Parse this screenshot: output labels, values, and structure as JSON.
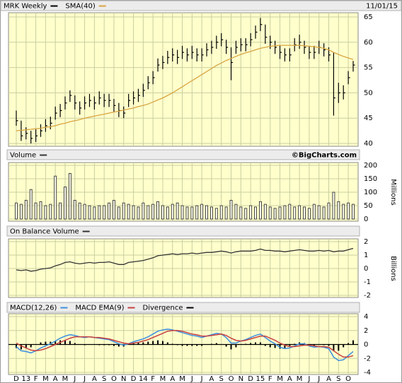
{
  "chart_data": [
    {
      "type": "ohlc",
      "date": "11/01/15",
      "series": [
        {
          "name": "MRK Weekly",
          "color": "#000000",
          "high": [
            46.5,
            44.5,
            43.2,
            42.5,
            42.8,
            43.8,
            44.8,
            45.3,
            47.3,
            47.8,
            49.3,
            50.5,
            49.5,
            48.3,
            49.3,
            49.8,
            49.3,
            50.3,
            49.8,
            49.8,
            48.8,
            48,
            47.3,
            49.8,
            50.3,
            50.8,
            51.8,
            53.3,
            54.3,
            56.8,
            57.3,
            58.3,
            58.8,
            58.5,
            59.3,
            58.8,
            59.3,
            58.8,
            58.8,
            59.8,
            60.3,
            61.3,
            61.8,
            60.5,
            59,
            60.3,
            60.8,
            60.8,
            61.8,
            63.3,
            64.8,
            63.5,
            61.3,
            60.3,
            59.3,
            58.8,
            58.8,
            60.8,
            61.5,
            60.3,
            59.3,
            59.3,
            60.3,
            59.8,
            59,
            58,
            52,
            51.5,
            54.3,
            56.3
          ],
          "low": [
            43.5,
            40.5,
            40.8,
            40,
            40.3,
            41.3,
            42.3,
            42.8,
            44.7,
            45.2,
            46.7,
            48.2,
            46.7,
            45.7,
            46.7,
            47.2,
            46.7,
            47.7,
            47.2,
            47.2,
            46.2,
            45.2,
            45,
            47.2,
            47.7,
            48.2,
            49.2,
            50.7,
            51.7,
            54.2,
            54.7,
            55.7,
            56.2,
            55.7,
            56.7,
            56.2,
            56.7,
            56.2,
            56.2,
            57.2,
            57.7,
            58.7,
            59.2,
            57.7,
            52.5,
            57.7,
            58.2,
            58.2,
            59.2,
            60.7,
            62.2,
            59.7,
            58.7,
            57.7,
            56.7,
            56.2,
            56.2,
            58.2,
            58.7,
            57.7,
            56.7,
            56.7,
            57.7,
            57.2,
            56.2,
            45.5,
            48,
            48.7,
            51.7,
            54.2
          ],
          "close": [
            44.5,
            41.5,
            42,
            41,
            41.5,
            42.5,
            43.5,
            44,
            46,
            46.5,
            48,
            49.5,
            48,
            47,
            48,
            48.5,
            48,
            49,
            48.5,
            48.5,
            47.5,
            46.5,
            46,
            48.5,
            49,
            49.5,
            50.5,
            52,
            53,
            55.5,
            56,
            57,
            57.5,
            57,
            58,
            57.5,
            58,
            57.5,
            57.5,
            58.5,
            59,
            60,
            60.5,
            59,
            56,
            59,
            59.5,
            59.5,
            60.5,
            62,
            63.5,
            61,
            60,
            59,
            58,
            57.5,
            57.5,
            59.5,
            60,
            59,
            58,
            58,
            59,
            58.5,
            57.5,
            49,
            50,
            50,
            53,
            55.5
          ]
        },
        {
          "name": "SMA(40)",
          "color": "#d9a441",
          "values": [
            42.5,
            42.6,
            42.7,
            42.8,
            42.9,
            43,
            43.2,
            43.3,
            43.5,
            43.8,
            44,
            44.3,
            44.5,
            44.7,
            45,
            45.2,
            45.4,
            45.6,
            45.8,
            46,
            46.2,
            46.4,
            46.6,
            46.8,
            47,
            47.3,
            47.5,
            47.8,
            48.2,
            48.6,
            49,
            49.5,
            50,
            50.6,
            51.2,
            51.8,
            52.4,
            53,
            53.6,
            54.2,
            54.8,
            55.4,
            55.9,
            56.4,
            56.8,
            57.2,
            57.6,
            57.9,
            58.2,
            58.5,
            58.8,
            59,
            59.2,
            59.3,
            59.4,
            59.4,
            59.4,
            59.4,
            59.4,
            59.3,
            59.2,
            59.1,
            59,
            58.8,
            58.5,
            58,
            57.6,
            57.2,
            56.9,
            56.6
          ]
        }
      ],
      "ylim": [
        40,
        65
      ],
      "yticks": [
        40,
        45,
        50,
        55,
        60,
        65
      ],
      "grid": true
    },
    {
      "type": "bar",
      "title": "Volume",
      "credit": "©BigCharts.com",
      "ylabel": "Millions",
      "color": "#333333",
      "values": [
        60,
        55,
        70,
        110,
        60,
        65,
        50,
        55,
        160,
        60,
        120,
        170,
        70,
        60,
        55,
        50,
        45,
        50,
        50,
        60,
        70,
        45,
        60,
        55,
        50,
        45,
        60,
        50,
        55,
        65,
        50,
        45,
        55,
        60,
        50,
        45,
        45,
        50,
        55,
        50,
        45,
        40,
        50,
        45,
        70,
        55,
        45,
        40,
        50,
        45,
        65,
        55,
        45,
        40,
        45,
        50,
        55,
        45,
        50,
        45,
        40,
        55,
        50,
        45,
        60,
        100,
        65,
        55,
        60,
        55
      ],
      "ylim": [
        0,
        200
      ],
      "yticks": [
        0,
        50,
        100,
        150,
        200
      ],
      "grid": true
    },
    {
      "type": "line",
      "title": "On Balance Volume",
      "ylabel": "Billions",
      "color": "#333333",
      "values": [
        -0.1,
        -0.15,
        -0.1,
        -0.2,
        -0.15,
        -0.05,
        0,
        0.05,
        0.2,
        0.3,
        0.45,
        0.5,
        0.4,
        0.35,
        0.4,
        0.45,
        0.4,
        0.45,
        0.45,
        0.5,
        0.4,
        0.3,
        0.3,
        0.45,
        0.5,
        0.55,
        0.6,
        0.7,
        0.8,
        0.95,
        1,
        1.05,
        1.1,
        1.05,
        1.1,
        1.1,
        1.15,
        1.1,
        1.15,
        1.2,
        1.2,
        1.25,
        1.3,
        1.25,
        1.15,
        1.25,
        1.3,
        1.3,
        1.3,
        1.35,
        1.45,
        1.35,
        1.35,
        1.3,
        1.3,
        1.25,
        1.3,
        1.35,
        1.4,
        1.35,
        1.3,
        1.3,
        1.35,
        1.3,
        1.35,
        1.25,
        1.3,
        1.3,
        1.4,
        1.5
      ],
      "ylim": [
        -2,
        2
      ],
      "yticks": [
        -2,
        -1,
        0,
        1,
        2
      ],
      "grid": true
    },
    {
      "type": "macd",
      "series": [
        {
          "name": "MACD(12,26)",
          "color": "#3c8fe0",
          "style": "line",
          "values": [
            -0.3,
            -0.9,
            -1,
            -1.2,
            -0.9,
            -0.5,
            -0.2,
            0.1,
            0.5,
            0.9,
            1.2,
            1.4,
            1.3,
            1.1,
            1,
            1.1,
            1,
            0.9,
            0.8,
            0.7,
            0.4,
            0.1,
            -0.1,
            0.1,
            0.4,
            0.6,
            0.8,
            1.1,
            1.5,
            1.9,
            2.1,
            2.2,
            2.1,
            1.9,
            1.7,
            1.5,
            1.3,
            1.2,
            1,
            1.2,
            1.4,
            1.6,
            1.5,
            1,
            0.2,
            0.2,
            0.5,
            0.7,
            1,
            1.3,
            1.5,
            1,
            0.5,
            0.1,
            -0.4,
            -0.6,
            -0.5,
            -0.2,
            0.1,
            0.1,
            -0.2,
            -0.4,
            -0.3,
            -0.4,
            -0.6,
            -1.8,
            -2.3,
            -2.2,
            -1.6,
            -1
          ]
        },
        {
          "name": "MACD EMA(9)",
          "color": "#c84040",
          "style": "line",
          "values": [
            0.2,
            -0.2,
            -0.5,
            -0.8,
            -0.9,
            -0.8,
            -0.6,
            -0.3,
            0,
            0.3,
            0.6,
            0.9,
            1.1,
            1.1,
            1.1,
            1.1,
            1,
            1,
            0.9,
            0.8,
            0.6,
            0.4,
            0.2,
            0.1,
            0.2,
            0.3,
            0.5,
            0.7,
            1,
            1.3,
            1.6,
            1.9,
            2,
            2,
            1.9,
            1.7,
            1.5,
            1.4,
            1.2,
            1.2,
            1.3,
            1.4,
            1.5,
            1.3,
            0.9,
            0.6,
            0.5,
            0.6,
            0.8,
            1,
            1.2,
            1.2,
            0.9,
            0.6,
            0.2,
            -0.1,
            -0.3,
            -0.3,
            -0.2,
            -0.1,
            -0.1,
            -0.2,
            -0.3,
            -0.3,
            -0.4,
            -0.9,
            -1.4,
            -1.8,
            -1.8,
            -1.6
          ]
        },
        {
          "name": "Divergence",
          "color": "#000000",
          "style": "bar",
          "values": [
            -0.5,
            -0.7,
            -0.5,
            -0.4,
            0,
            0.3,
            0.4,
            0.4,
            0.5,
            0.6,
            0.6,
            0.5,
            0.2,
            0,
            -0.1,
            0,
            0,
            -0.1,
            -0.1,
            -0.1,
            -0.2,
            -0.3,
            -0.3,
            0,
            0.2,
            0.3,
            0.3,
            0.4,
            0.5,
            0.6,
            0.5,
            0.3,
            0.1,
            -0.1,
            -0.2,
            -0.2,
            -0.2,
            -0.2,
            -0.2,
            0,
            0.1,
            0.2,
            0,
            -0.3,
            -0.7,
            -0.4,
            0,
            0.1,
            0.2,
            0.3,
            0.3,
            -0.2,
            -0.4,
            -0.5,
            -0.6,
            -0.5,
            -0.2,
            0.1,
            0.3,
            0.2,
            -0.1,
            -0.2,
            0,
            -0.1,
            -0.2,
            -0.9,
            -0.9,
            -0.4,
            0.2,
            0.6
          ]
        }
      ],
      "categories": [
        "D",
        null,
        "13",
        null,
        "F",
        null,
        "M",
        null,
        "A",
        null,
        "M",
        null,
        "J",
        null,
        "J",
        null,
        "A",
        null,
        "S",
        null,
        "O",
        null,
        "N",
        null,
        "D",
        null,
        "14",
        null,
        "F",
        null,
        "M",
        null,
        "A",
        null,
        "M",
        null,
        "J",
        null,
        "J",
        null,
        "A",
        null,
        "S",
        null,
        "O",
        null,
        "N",
        null,
        "D",
        null,
        "15",
        null,
        "F",
        null,
        "M",
        null,
        "A",
        null,
        "M",
        null,
        "J",
        null,
        "J",
        null,
        "A",
        null,
        "S",
        null,
        "O",
        null
      ],
      "ylim": [
        -4,
        4
      ],
      "yticks": [
        -4,
        -2,
        0,
        2,
        4
      ],
      "grid": true
    }
  ]
}
